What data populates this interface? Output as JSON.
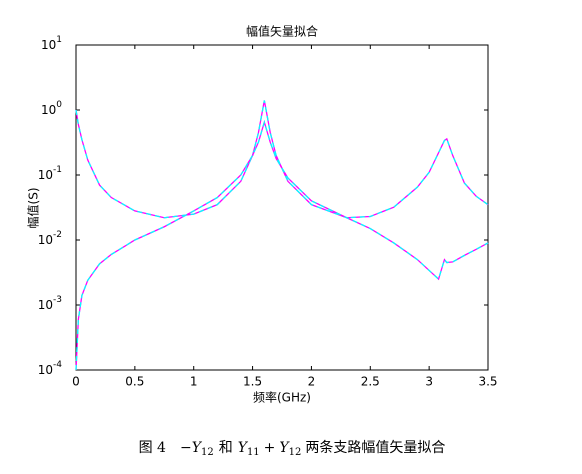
{
  "chart_data": {
    "type": "line",
    "title": "幅值矢量拟合",
    "xlabel": "频率(GHz)",
    "ylabel": "幅值(S)",
    "log_y": true,
    "x": [
      0,
      0.02,
      0.05,
      0.1,
      0.2,
      0.3,
      0.5,
      0.75,
      1.0,
      1.2,
      1.4,
      1.5,
      1.55,
      1.6,
      1.65,
      1.7,
      1.8,
      2.0,
      2.3,
      2.5,
      2.7,
      2.9,
      3.0,
      3.08,
      3.13,
      3.15,
      3.2,
      3.3,
      3.4,
      3.5
    ],
    "series": [
      {
        "color": "#ff00ff",
        "fit_color": "#00ffff",
        "values": [
          1.0,
          0.6,
          0.35,
          0.17,
          0.07,
          0.045,
          0.028,
          0.022,
          0.025,
          0.035,
          0.08,
          0.2,
          0.45,
          1.4,
          0.45,
          0.2,
          0.08,
          0.035,
          0.022,
          0.023,
          0.032,
          0.065,
          0.11,
          0.22,
          0.34,
          0.36,
          0.2,
          0.075,
          0.047,
          0.035
        ]
      },
      {
        "color": "#ff00ff",
        "fit_color": "#00ffff",
        "values": [
          0.0001,
          0.0006,
          0.0014,
          0.0024,
          0.0043,
          0.006,
          0.01,
          0.016,
          0.028,
          0.045,
          0.1,
          0.2,
          0.32,
          0.65,
          0.32,
          0.18,
          0.09,
          0.04,
          0.022,
          0.015,
          0.009,
          0.005,
          0.0034,
          0.0025,
          0.005,
          0.0045,
          0.0046,
          0.0058,
          0.0072,
          0.009
        ]
      }
    ],
    "xlim": [
      0,
      3.5
    ],
    "xticks": [
      0,
      0.5,
      1,
      1.5,
      2,
      2.5,
      3,
      3.5
    ],
    "ylim": [
      0.0001,
      10
    ],
    "yticks": [
      {
        "value": 0.0001,
        "base": "10",
        "exponent": "-4"
      },
      {
        "value": 0.001,
        "base": "10",
        "exponent": "-3"
      },
      {
        "value": 0.01,
        "base": "10",
        "exponent": "-2"
      },
      {
        "value": 0.1,
        "base": "10",
        "exponent": "-1"
      },
      {
        "value": 1,
        "base": "10",
        "exponent": "0"
      },
      {
        "value": 10,
        "base": "10",
        "exponent": "1"
      }
    ],
    "grid": false
  },
  "caption": [
    "图 4",
    "−Y",
    "12",
    "和",
    "Y",
    "11",
    "+",
    "Y",
    "12",
    "两条支路幅值矢量拟合"
  ]
}
